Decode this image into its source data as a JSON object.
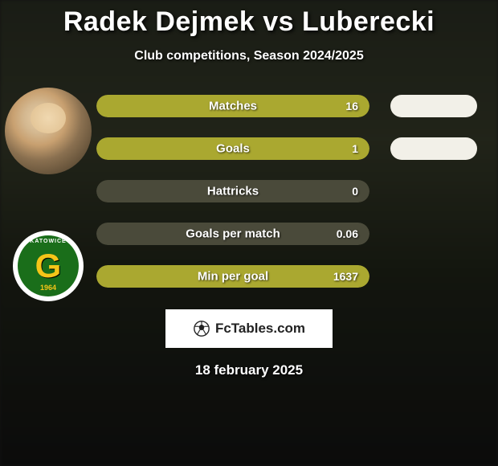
{
  "title": "Radek Dejmek vs Luberecki",
  "subtitle": "Club competitions, Season 2024/2025",
  "date": "18 february 2025",
  "brand": "FcTables.com",
  "colors": {
    "bar_fill": "#aaa830",
    "bar_bg_light": "#e8e6d0",
    "bar_bg_dark": "#4a4a3a",
    "blob": "#f2f0e8"
  },
  "stats": [
    {
      "label": "Matches",
      "value": "16",
      "fill_pct": 100,
      "has_blob": true
    },
    {
      "label": "Goals",
      "value": "1",
      "fill_pct": 100,
      "has_blob": true
    },
    {
      "label": "Hattricks",
      "value": "0",
      "fill_pct": 0,
      "has_blob": false
    },
    {
      "label": "Goals per match",
      "value": "0.06",
      "fill_pct": 0,
      "has_blob": false
    },
    {
      "label": "Min per goal",
      "value": "1637",
      "fill_pct": 100,
      "has_blob": false
    }
  ],
  "club": {
    "letter": "G",
    "arc": "KATOWICE",
    "year": "1964"
  }
}
